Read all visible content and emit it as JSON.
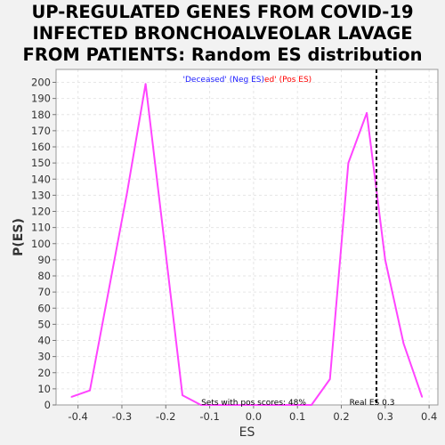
{
  "chart_data": {
    "type": "line",
    "title_lines": [
      "UP-REGULATED GENES FROM COVID-19",
      "INFECTED BRONCHOALVEOLAR LAVAGE",
      "FROM PATIENTS: Random ES distribution"
    ],
    "xlabel": "ES",
    "ylabel": "P(ES)",
    "xlim": [
      -0.45,
      0.42
    ],
    "ylim": [
      0,
      208
    ],
    "x_ticks": [
      "-0.4",
      "-0.3",
      "-0.2",
      "-0.1",
      "0.0",
      "0.1",
      "0.2",
      "0.3",
      "0.4"
    ],
    "x_tick_values": [
      -0.4,
      -0.3,
      -0.2,
      -0.1,
      0.0,
      0.1,
      0.2,
      0.3,
      0.4
    ],
    "y_ticks": [
      "0",
      "10",
      "20",
      "30",
      "40",
      "50",
      "60",
      "70",
      "80",
      "90",
      "100",
      "110",
      "120",
      "130",
      "140",
      "150",
      "160",
      "170",
      "180",
      "190",
      "200"
    ],
    "y_tick_values": [
      0,
      10,
      20,
      30,
      40,
      50,
      60,
      70,
      80,
      90,
      100,
      110,
      120,
      130,
      140,
      150,
      160,
      170,
      180,
      190,
      200
    ],
    "grid": true,
    "series": [
      {
        "color": "#ff44ff",
        "x": [
          -0.415,
          -0.373,
          -0.288,
          -0.246,
          -0.204,
          -0.162,
          -0.12,
          -0.078,
          -0.036,
          0.006,
          0.048,
          0.09,
          0.132,
          0.174,
          0.216,
          0.258,
          0.3,
          0.342,
          0.384
        ],
        "y": [
          5,
          9,
          132,
          199,
          103,
          6,
          0,
          0,
          0,
          0,
          0,
          0,
          0,
          16,
          150,
          181,
          90,
          38,
          5
        ]
      }
    ],
    "real_es_line": {
      "x": 0.28,
      "color": "#000000",
      "style": "dashed"
    },
    "legend": {
      "neg_label": "'Deceased' (Neg ES)",
      "neg_color": "#1a1aff",
      "pos_label": "ed' (Pos ES)",
      "pos_color": "#ff0000"
    },
    "annotations": {
      "pos_scores": "Sets with pos scores: 48%",
      "real_es": "Real ES 0.3"
    }
  }
}
